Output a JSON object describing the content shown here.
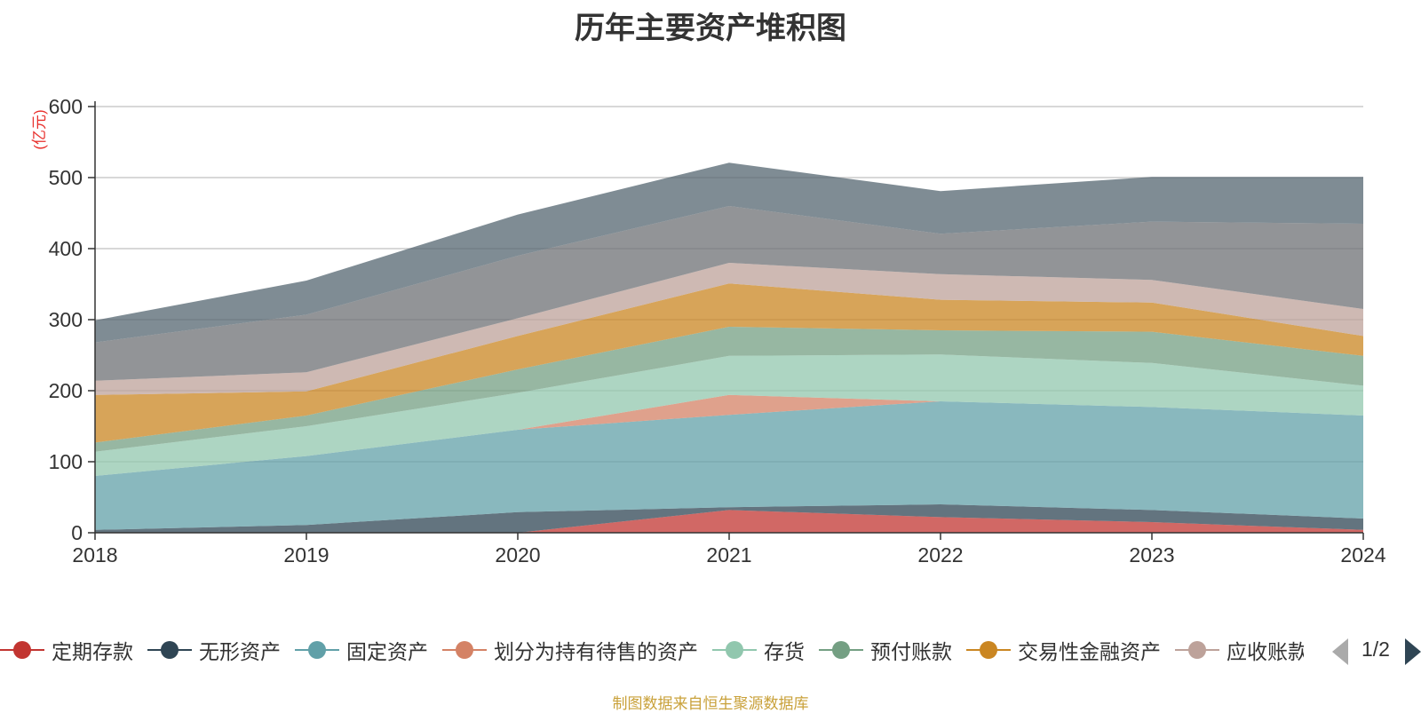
{
  "chart_data": {
    "type": "area",
    "stacked": true,
    "title": "历年主要资产堆积图",
    "unit_label": "(亿元)",
    "x": [
      "2018",
      "2019",
      "2020",
      "2021",
      "2022",
      "2023",
      "2024"
    ],
    "ylim": [
      0,
      600
    ],
    "yticks": [
      0,
      100,
      200,
      300,
      400,
      500,
      600
    ],
    "grid": true,
    "legend_position": "bottom",
    "series": [
      {
        "name": "定期存款",
        "color": "#c23531",
        "values": [
          0,
          0,
          0,
          32,
          22,
          15,
          4
        ]
      },
      {
        "name": "无形资产",
        "color": "#2f4554",
        "values": [
          4,
          11,
          29,
          4,
          18,
          17,
          16
        ]
      },
      {
        "name": "固定资产",
        "color": "#61a0a8",
        "values": [
          76,
          97,
          116,
          130,
          145,
          145,
          145
        ]
      },
      {
        "name": "划分为持有待售的资产",
        "color": "#d48265",
        "values": [
          0,
          0,
          0,
          28,
          0,
          0,
          0
        ]
      },
      {
        "name": "存货",
        "color": "#91c7ae",
        "values": [
          34,
          42,
          52,
          55,
          66,
          62,
          42
        ]
      },
      {
        "name": "预付账款",
        "color": "#749f83",
        "values": [
          13,
          15,
          33,
          41,
          34,
          44,
          42
        ]
      },
      {
        "name": "交易性金融资产",
        "color": "#ca8622",
        "values": [
          67,
          34,
          47,
          61,
          43,
          41,
          28
        ]
      },
      {
        "name": "应收账款",
        "color": "#bda29a",
        "values": [
          20,
          27,
          25,
          29,
          36,
          32,
          38
        ]
      },
      {
        "name": "",
        "color": "#6e7074",
        "values": [
          54,
          81,
          88,
          80,
          57,
          82,
          120
        ]
      },
      {
        "name": "",
        "color": "#546570",
        "values": [
          31,
          48,
          58,
          61,
          60,
          63,
          66
        ]
      }
    ]
  },
  "legend": {
    "visible_items": [
      {
        "label": "定期存款",
        "color": "#c23531",
        "icon": "circle-marker-icon"
      },
      {
        "label": "无形资产",
        "color": "#2f4554",
        "icon": "circle-marker-icon"
      },
      {
        "label": "固定资产",
        "color": "#61a0a8",
        "icon": "circle-marker-icon"
      },
      {
        "label": "划分为持有待售的资产",
        "color": "#d48265",
        "icon": "circle-marker-icon"
      },
      {
        "label": "存货",
        "color": "#91c7ae",
        "icon": "circle-marker-icon"
      },
      {
        "label": "预付账款",
        "color": "#749f83",
        "icon": "circle-marker-icon"
      },
      {
        "label": "交易性金融资产",
        "color": "#ca8622",
        "icon": "circle-marker-icon"
      },
      {
        "label": "应收账款",
        "color": "#bda29a",
        "icon": "circle-marker-icon"
      }
    ],
    "pager_text": "1/2",
    "prev_icon": "triangle-left-icon",
    "next_icon": "triangle-right-icon"
  },
  "footer": "制图数据来自恒生聚源数据库"
}
